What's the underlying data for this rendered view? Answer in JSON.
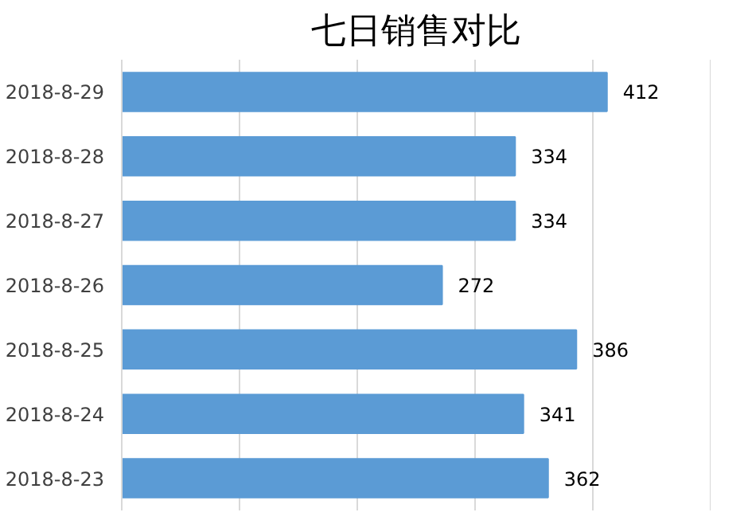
{
  "chart_data": {
    "type": "bar",
    "orientation": "horizontal",
    "title": "七日销售对比",
    "categories": [
      "2018-8-29",
      "2018-8-28",
      "2018-8-27",
      "2018-8-26",
      "2018-8-25",
      "2018-8-24",
      "2018-8-23"
    ],
    "values": [
      412,
      334,
      334,
      272,
      386,
      341,
      362
    ],
    "color": "#5b9bd5",
    "data_labels": true,
    "xlim": [
      0,
      500
    ],
    "xticks": [
      {
        "value": 0,
        "label": null
      },
      {
        "value": 100,
        "label": null
      },
      {
        "value": 200,
        "label": null
      },
      {
        "value": 300,
        "label": null
      },
      {
        "value": 400,
        "label": null
      },
      {
        "value": 500,
        "label": null
      }
    ],
    "grid": "x",
    "tick_labels": "y"
  }
}
